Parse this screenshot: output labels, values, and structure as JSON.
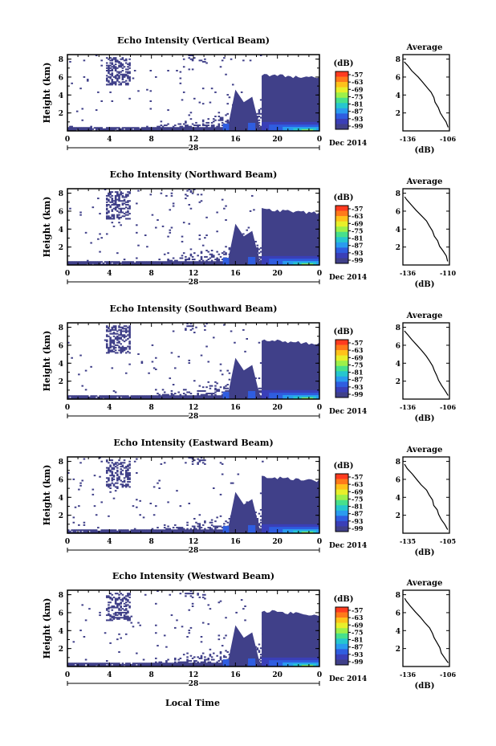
{
  "date_label": "Dec 2014",
  "common_xlabel": "Local Time",
  "colorbar": {
    "unit": "(dB)",
    "ticks": [
      "-57",
      "-63",
      "-69",
      "-75",
      "-81",
      "-87",
      "-93",
      "-99"
    ],
    "colors": [
      "#ff3b1f",
      "#ff7a1a",
      "#ffc21a",
      "#e8ef2a",
      "#9df04a",
      "#47e08c",
      "#26c6cf",
      "#2a9bef",
      "#2f5de0",
      "#3a3fb8",
      "#404089"
    ]
  },
  "chart_data": [
    {
      "type": "heatmap",
      "title": "Echo Intensity (Vertical Beam)",
      "ylabel": "Height (km)",
      "x_ticks": [
        "0",
        "4",
        "8",
        "12",
        "16",
        "20",
        "0"
      ],
      "day_label": "28",
      "y_ticks": [
        "2",
        "4",
        "6",
        "8"
      ],
      "xlim": [
        0,
        24
      ],
      "ylim": [
        0,
        8.5
      ],
      "cloud_onset_hour": 18.5,
      "cloud_top_km": 6.3,
      "average_profile": {
        "title": "Average",
        "xlabel": "(dB)",
        "x_ticks": [
          "-136",
          "-106"
        ],
        "y_ticks": [
          "2",
          "4",
          "6",
          "8"
        ],
        "xlim": [
          -136,
          -106
        ],
        "ylim": [
          0,
          8.5
        ],
        "points": [
          [
            -107,
            0.4
          ],
          [
            -108,
            1.0
          ],
          [
            -110,
            1.5
          ],
          [
            -112,
            2.0
          ],
          [
            -113,
            2.6
          ],
          [
            -115,
            3.2
          ],
          [
            -116,
            3.7
          ],
          [
            -118,
            4.3
          ],
          [
            -120,
            4.8
          ],
          [
            -123,
            5.4
          ],
          [
            -126,
            6.0
          ],
          [
            -130,
            6.7
          ],
          [
            -133,
            7.3
          ],
          [
            -135,
            7.7
          ]
        ]
      }
    },
    {
      "type": "heatmap",
      "title": "Echo Intensity (Northward Beam)",
      "ylabel": "Height (km)",
      "x_ticks": [
        "0",
        "4",
        "8",
        "12",
        "16",
        "20",
        "0"
      ],
      "day_label": "28",
      "y_ticks": [
        "2",
        "4",
        "6",
        "8"
      ],
      "xlim": [
        0,
        24
      ],
      "ylim": [
        0,
        8.5
      ],
      "cloud_onset_hour": 18.5,
      "cloud_top_km": 6.2,
      "average_profile": {
        "title": "Average",
        "xlabel": "(dB)",
        "x_ticks": [
          "-136",
          "-110"
        ],
        "y_ticks": [
          "2",
          "4",
          "6",
          "8"
        ],
        "xlim": [
          -136,
          -108
        ],
        "ylim": [
          0,
          8.5
        ],
        "points": [
          [
            -109,
            0.4
          ],
          [
            -110,
            1.0
          ],
          [
            -112,
            1.6
          ],
          [
            -114,
            2.1
          ],
          [
            -115,
            2.7
          ],
          [
            -117,
            3.2
          ],
          [
            -118,
            3.8
          ],
          [
            -120,
            4.4
          ],
          [
            -122,
            4.9
          ],
          [
            -125,
            5.5
          ],
          [
            -128,
            6.1
          ],
          [
            -131,
            6.7
          ],
          [
            -134,
            7.3
          ],
          [
            -135,
            7.6
          ]
        ]
      }
    },
    {
      "type": "heatmap",
      "title": "Echo Intensity (Southward Beam)",
      "ylabel": "Height (km)",
      "x_ticks": [
        "0",
        "4",
        "8",
        "12",
        "16",
        "20",
        "0"
      ],
      "day_label": "28",
      "y_ticks": [
        "2",
        "4",
        "6",
        "8"
      ],
      "xlim": [
        0,
        24
      ],
      "ylim": [
        0,
        8.5
      ],
      "cloud_onset_hour": 18.5,
      "cloud_top_km": 6.6,
      "average_profile": {
        "title": "Average",
        "xlabel": "(dB)",
        "x_ticks": [
          "-136",
          "-106"
        ],
        "y_ticks": [
          "2",
          "4",
          "6",
          "8"
        ],
        "xlim": [
          -136,
          -106
        ],
        "ylim": [
          0,
          8.5
        ],
        "points": [
          [
            -107,
            0.4
          ],
          [
            -109,
            1.0
          ],
          [
            -111,
            1.5
          ],
          [
            -113,
            2.1
          ],
          [
            -114,
            2.6
          ],
          [
            -116,
            3.2
          ],
          [
            -117,
            3.7
          ],
          [
            -119,
            4.3
          ],
          [
            -121,
            4.8
          ],
          [
            -124,
            5.4
          ],
          [
            -127,
            6.0
          ],
          [
            -130,
            6.6
          ],
          [
            -133,
            7.2
          ],
          [
            -135,
            7.6
          ]
        ]
      }
    },
    {
      "type": "heatmap",
      "title": "Echo Intensity (Eastward Beam)",
      "ylabel": "Height (km)",
      "x_ticks": [
        "0",
        "4",
        "8",
        "12",
        "16",
        "20",
        "0"
      ],
      "day_label": "28",
      "y_ticks": [
        "2",
        "4",
        "6",
        "8"
      ],
      "xlim": [
        0,
        24
      ],
      "ylim": [
        0,
        8.5
      ],
      "cloud_onset_hour": 18.5,
      "cloud_top_km": 6.3,
      "average_profile": {
        "title": "Average",
        "xlabel": "(dB)",
        "x_ticks": [
          "-135",
          "-105"
        ],
        "y_ticks": [
          "2",
          "4",
          "6",
          "8"
        ],
        "xlim": [
          -135,
          -105
        ],
        "ylim": [
          0,
          8.5
        ],
        "points": [
          [
            -106,
            0.4
          ],
          [
            -108,
            1.0
          ],
          [
            -110,
            1.5
          ],
          [
            -112,
            2.1
          ],
          [
            -113,
            2.6
          ],
          [
            -115,
            3.1
          ],
          [
            -116,
            3.7
          ],
          [
            -118,
            4.3
          ],
          [
            -120,
            4.8
          ],
          [
            -123,
            5.4
          ],
          [
            -126,
            6.0
          ],
          [
            -129,
            6.6
          ],
          [
            -132,
            7.2
          ],
          [
            -134,
            7.7
          ]
        ]
      }
    },
    {
      "type": "heatmap",
      "title": "Echo Intensity (Westward Beam)",
      "ylabel": "Height (km)",
      "x_ticks": [
        "0",
        "4",
        "8",
        "12",
        "16",
        "20",
        "0"
      ],
      "day_label": "28",
      "y_ticks": [
        "2",
        "4",
        "6",
        "8"
      ],
      "xlim": [
        0,
        24
      ],
      "ylim": [
        0,
        8.5
      ],
      "cloud_onset_hour": 18.5,
      "cloud_top_km": 6.2,
      "average_profile": {
        "title": "Average",
        "xlabel": "(dB)",
        "x_ticks": [
          "-136",
          "-106"
        ],
        "y_ticks": [
          "2",
          "4",
          "6",
          "8"
        ],
        "xlim": [
          -136,
          -106
        ],
        "ylim": [
          0,
          8.5
        ],
        "points": [
          [
            -107,
            0.4
          ],
          [
            -109,
            1.0
          ],
          [
            -111,
            1.5
          ],
          [
            -112,
            2.1
          ],
          [
            -114,
            2.6
          ],
          [
            -116,
            3.2
          ],
          [
            -117,
            3.7
          ],
          [
            -119,
            4.3
          ],
          [
            -122,
            4.9
          ],
          [
            -125,
            5.5
          ],
          [
            -128,
            6.1
          ],
          [
            -131,
            6.7
          ],
          [
            -134,
            7.3
          ],
          [
            -135,
            7.6
          ]
        ]
      }
    }
  ]
}
